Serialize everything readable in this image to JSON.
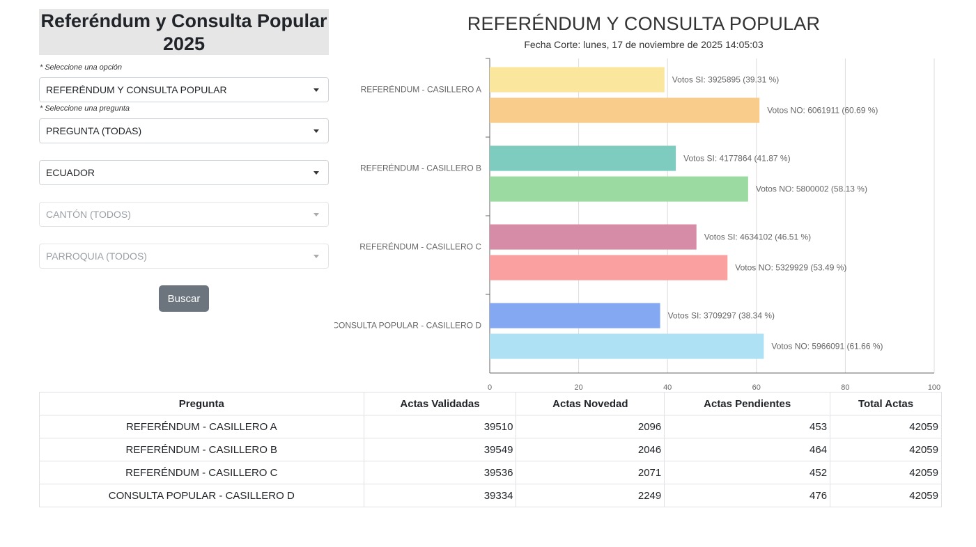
{
  "sidebar": {
    "title": "Referéndum y Consulta Popular 2025",
    "hint_option": "* Seleccione una opción",
    "hint_question": "* Seleccione una pregunta",
    "select_option": "REFERÉNDUM Y CONSULTA POPULAR",
    "select_question": "PREGUNTA (TODAS)",
    "select_province": "ECUADOR",
    "select_canton": "CANTÓN (TODOS)",
    "select_parish": "PARROQUIA (TODOS)",
    "search_button": "Buscar"
  },
  "chart_data": {
    "type": "bar",
    "orientation": "horizontal",
    "title": "REFERÉNDUM Y CONSULTA POPULAR",
    "subtitle": "Fecha Corte: lunes, 17 de noviembre de 2025 14:05:03",
    "categories": [
      "REFERÉNDUM - CASILLERO A",
      "REFERÉNDUM - CASILLERO B",
      "REFERÉNDUM - CASILLERO C",
      "CONSULTA POPULAR - CASILLERO D"
    ],
    "xlim": [
      0,
      100
    ],
    "xticks": [
      "0",
      "20",
      "40",
      "60",
      "80",
      "100"
    ],
    "grid": true,
    "bars": [
      {
        "category": 0,
        "kind": "SI",
        "value": 39.31,
        "label": "Votos SI: 3925895 (39.31 %)",
        "color": "#fae69d"
      },
      {
        "category": 0,
        "kind": "NO",
        "value": 60.69,
        "label": "Votos NO: 6061911 (60.69 %)",
        "color": "#f9cc8b"
      },
      {
        "category": 1,
        "kind": "SI",
        "value": 41.87,
        "label": "Votos SI: 4177864 (41.87 %)",
        "color": "#7ecbbf"
      },
      {
        "category": 1,
        "kind": "NO",
        "value": 58.13,
        "label": "Votos NO: 5800002 (58.13 %)",
        "color": "#9bdaa1"
      },
      {
        "category": 2,
        "kind": "SI",
        "value": 46.51,
        "label": "Votos SI: 4634102 (46.51 %)",
        "color": "#d68ba6"
      },
      {
        "category": 2,
        "kind": "NO",
        "value": 53.49,
        "label": "Votos NO: 5329929 (53.49 %)",
        "color": "#fba0a1"
      },
      {
        "category": 3,
        "kind": "SI",
        "value": 38.34,
        "label": "Votos SI: 3709297 (38.34 %)",
        "color": "#84a9f2"
      },
      {
        "category": 3,
        "kind": "NO",
        "value": 61.66,
        "label": "Votos NO: 5966091 (61.66 %)",
        "color": "#aee1f4"
      }
    ]
  },
  "table": {
    "headers": [
      "Pregunta",
      "Actas Validadas",
      "Actas Novedad",
      "Actas Pendientes",
      "Total Actas"
    ],
    "rows": [
      [
        "REFERÉNDUM - CASILLERO A",
        "39510",
        "2096",
        "453",
        "42059"
      ],
      [
        "REFERÉNDUM - CASILLERO B",
        "39549",
        "2046",
        "464",
        "42059"
      ],
      [
        "REFERÉNDUM - CASILLERO C",
        "39536",
        "2071",
        "452",
        "42059"
      ],
      [
        "CONSULTA POPULAR - CASILLERO D",
        "39334",
        "2249",
        "476",
        "42059"
      ]
    ]
  }
}
